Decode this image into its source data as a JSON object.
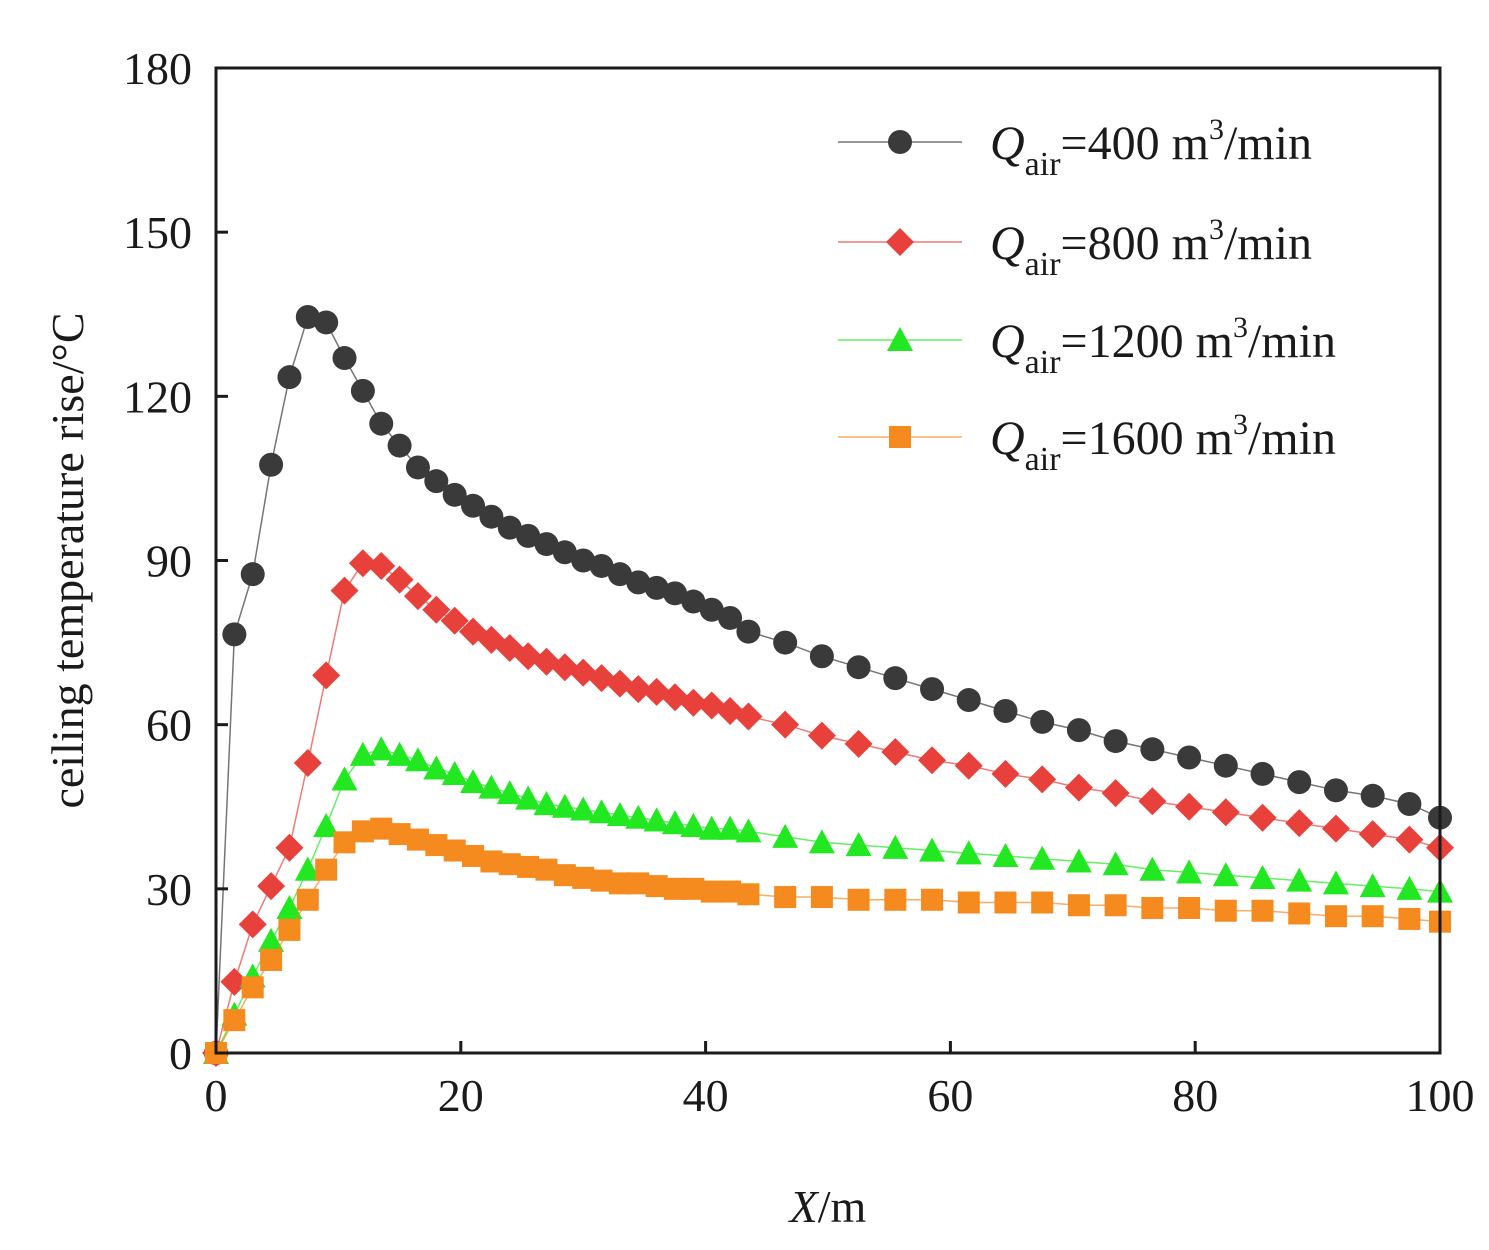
{
  "chart_data": {
    "type": "line",
    "title": "",
    "xlabel": {
      "italic": "X",
      "rest": "/m"
    },
    "ylabel": "ceiling temperature rise/°C",
    "xlim": [
      0,
      100
    ],
    "ylim": [
      0,
      180
    ],
    "xticks": [
      0,
      20,
      40,
      60,
      80,
      100
    ],
    "yticks": [
      0,
      30,
      60,
      90,
      120,
      150,
      180
    ],
    "grid": false,
    "legend_position": "top-right",
    "legend_label_parts": {
      "symbol": "Q",
      "sub": "air",
      "unit_prefix": " m",
      "unit_sup": "3",
      "unit_suffix": "/min"
    },
    "series": [
      {
        "name": "Qair=400 m3/min",
        "flow": "400",
        "color": "#3a3a3a",
        "marker": "circle",
        "x": [
          0,
          1.5,
          3,
          4.5,
          6,
          7.5,
          9,
          10.5,
          12,
          13.5,
          15,
          16.5,
          18,
          19.5,
          21,
          22.5,
          24,
          25.5,
          27,
          28.5,
          30,
          31.5,
          33,
          34.5,
          36,
          37.5,
          39,
          40.5,
          42,
          43.5,
          46.5,
          49.5,
          52.5,
          55.5,
          58.5,
          61.5,
          64.5,
          67.5,
          70.5,
          73.5,
          76.5,
          79.5,
          82.5,
          85.5,
          88.5,
          91.5,
          94.5,
          97.5,
          100
        ],
        "y": [
          0,
          76.5,
          87.5,
          107.5,
          123.5,
          134.5,
          133.5,
          127,
          121,
          115,
          111,
          107,
          104.5,
          102,
          100,
          98,
          96,
          94.5,
          93,
          91.5,
          90,
          89,
          87.5,
          86,
          85,
          84,
          82.5,
          81,
          79.5,
          77,
          75,
          72.5,
          70.5,
          68.5,
          66.5,
          64.5,
          62.5,
          60.5,
          59,
          57,
          55.5,
          54,
          52.5,
          51,
          49.5,
          48,
          47,
          45.5,
          43
        ]
      },
      {
        "name": "Qair=800 m3/min",
        "flow": "800",
        "color": "#e8413c",
        "marker": "diamond",
        "x": [
          0,
          1.5,
          3,
          4.5,
          6,
          7.5,
          9,
          10.5,
          12,
          13.5,
          15,
          16.5,
          18,
          19.5,
          21,
          22.5,
          24,
          25.5,
          27,
          28.5,
          30,
          31.5,
          33,
          34.5,
          36,
          37.5,
          39,
          40.5,
          42,
          43.5,
          46.5,
          49.5,
          52.5,
          55.5,
          58.5,
          61.5,
          64.5,
          67.5,
          70.5,
          73.5,
          76.5,
          79.5,
          82.5,
          85.5,
          88.5,
          91.5,
          94.5,
          97.5,
          100
        ],
        "y": [
          0,
          13,
          23.5,
          30.5,
          37.5,
          53,
          69,
          84.5,
          89.5,
          89,
          86.5,
          83.5,
          81,
          79,
          77,
          75.5,
          74,
          72.5,
          71.5,
          70.5,
          69.5,
          68.5,
          67.5,
          66.5,
          66,
          65,
          64,
          63.5,
          62.5,
          61.5,
          60,
          58,
          56.5,
          55,
          53.5,
          52.5,
          51,
          50,
          48.5,
          47.5,
          46,
          45,
          44,
          43,
          42,
          41,
          40,
          39,
          37.5
        ]
      },
      {
        "name": "Qair=1200 m3/min",
        "flow": "1200",
        "color": "#22e822",
        "marker": "triangle",
        "x": [
          0,
          1.5,
          3,
          4.5,
          6,
          7.5,
          9,
          10.5,
          12,
          13.5,
          15,
          16.5,
          18,
          19.5,
          21,
          22.5,
          24,
          25.5,
          27,
          28.5,
          30,
          31.5,
          33,
          34.5,
          36,
          37.5,
          39,
          40.5,
          42,
          43.5,
          46.5,
          49.5,
          52.5,
          55.5,
          58.5,
          61.5,
          64.5,
          67.5,
          70.5,
          73.5,
          76.5,
          79.5,
          82.5,
          85.5,
          88.5,
          91.5,
          94.5,
          97.5,
          100
        ],
        "y": [
          0,
          7,
          14,
          20.5,
          26.5,
          33.5,
          41.5,
          50,
          54.5,
          55.5,
          54.5,
          53.5,
          52,
          51,
          49.5,
          48.5,
          47.5,
          46.5,
          45.5,
          45,
          44.5,
          44,
          43.5,
          43,
          42.5,
          42,
          41.5,
          41,
          41,
          40.5,
          39.5,
          38.5,
          38,
          37.5,
          37,
          36.5,
          36,
          35.5,
          35,
          34.5,
          33.5,
          33,
          32.5,
          32,
          31.5,
          31,
          30.5,
          30,
          29.5
        ]
      },
      {
        "name": "Qair=1600 m3/min",
        "flow": "1600",
        "color": "#f58a1f",
        "marker": "square",
        "x": [
          0,
          1.5,
          3,
          4.5,
          6,
          7.5,
          9,
          10.5,
          12,
          13.5,
          15,
          16.5,
          18,
          19.5,
          21,
          22.5,
          24,
          25.5,
          27,
          28.5,
          30,
          31.5,
          33,
          34.5,
          36,
          37.5,
          39,
          40.5,
          42,
          43.5,
          46.5,
          49.5,
          52.5,
          55.5,
          58.5,
          61.5,
          64.5,
          67.5,
          70.5,
          73.5,
          76.5,
          79.5,
          82.5,
          85.5,
          88.5,
          91.5,
          94.5,
          97.5,
          100
        ],
        "y": [
          0,
          6,
          12,
          17,
          22.5,
          28,
          33.5,
          38.5,
          40.5,
          41,
          40,
          39,
          38,
          37,
          36,
          35,
          34.5,
          34,
          33.5,
          32.5,
          32,
          31.5,
          31,
          31,
          30.5,
          30,
          30,
          29.5,
          29.5,
          29,
          28.5,
          28.5,
          28,
          28,
          28,
          27.5,
          27.5,
          27.5,
          27,
          27,
          26.5,
          26.5,
          26,
          26,
          25.5,
          25,
          25,
          24.5,
          24
        ]
      }
    ]
  }
}
